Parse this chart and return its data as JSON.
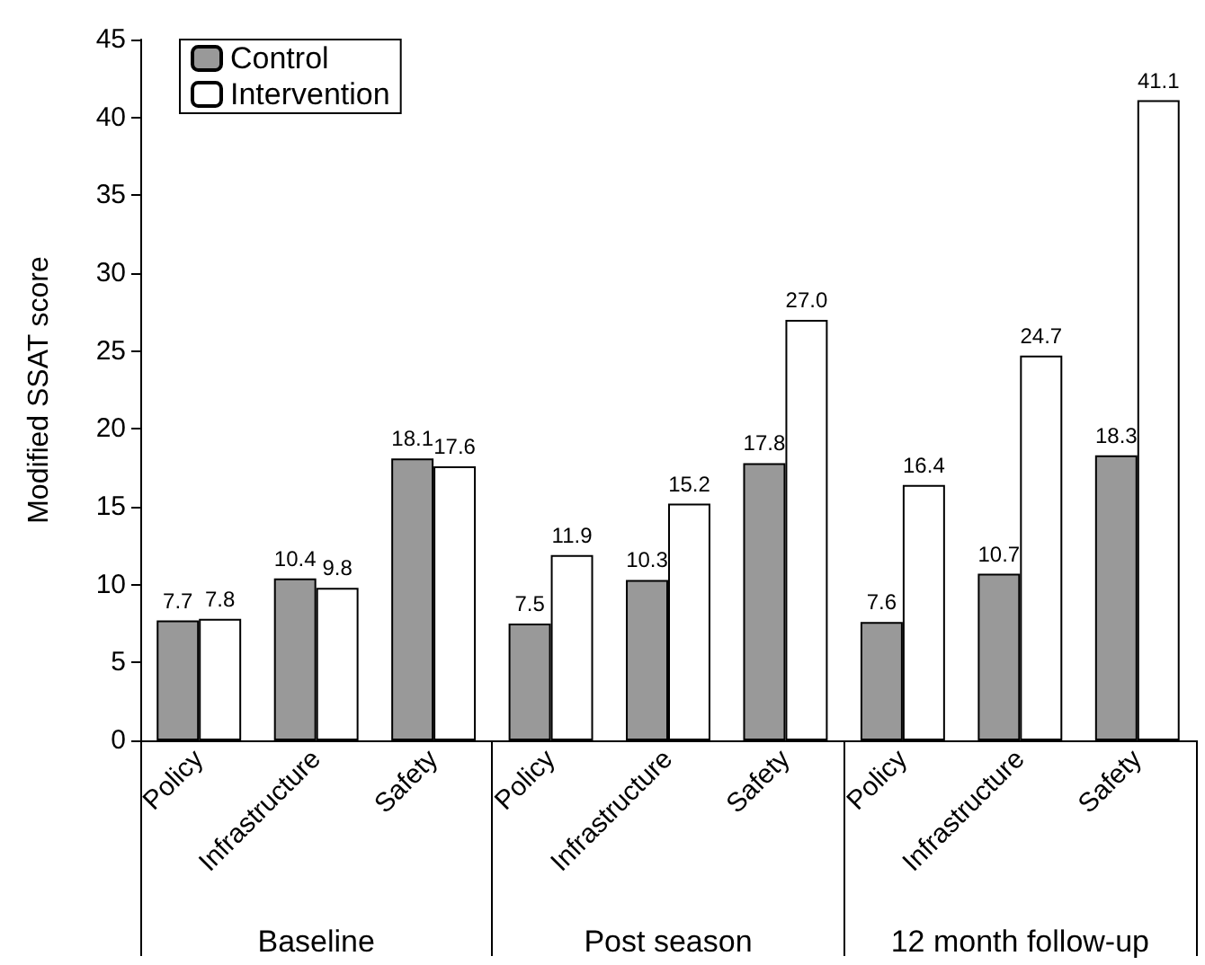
{
  "chart_data": {
    "type": "bar",
    "ylabel": "Modified SSAT score",
    "categories": [
      "Policy",
      "Infrastructure",
      "Safety",
      "Policy",
      "Infrastructure",
      "Safety",
      "Policy",
      "Infrastructure",
      "Safety"
    ],
    "series": [
      {
        "name": "Control",
        "color": "#999999",
        "values": [
          7.7,
          10.4,
          18.1,
          7.5,
          10.3,
          17.8,
          7.6,
          10.7,
          18.3
        ],
        "value_labels": [
          "7.7",
          "10.4",
          "18.1",
          "7.5",
          "10.3",
          "17.8",
          "7.6",
          "10.7",
          "18.3"
        ]
      },
      {
        "name": "Intervention",
        "color": "#ffffff",
        "values": [
          7.8,
          9.8,
          17.6,
          11.9,
          15.2,
          27.0,
          16.4,
          24.7,
          41.1
        ],
        "value_labels": [
          "7.8",
          "9.8",
          "17.6",
          "11.9",
          "15.2",
          "27.0",
          "16.4",
          "24.7",
          "41.1"
        ]
      }
    ],
    "annotations": [
      "Baseline",
      "Post season",
      "12 month follow-up"
    ],
    "ylim": [
      0,
      45
    ],
    "yticks": [
      0,
      5,
      10,
      15,
      20,
      25,
      30,
      35,
      40,
      45
    ],
    "grid": false,
    "legend": "top left"
  }
}
